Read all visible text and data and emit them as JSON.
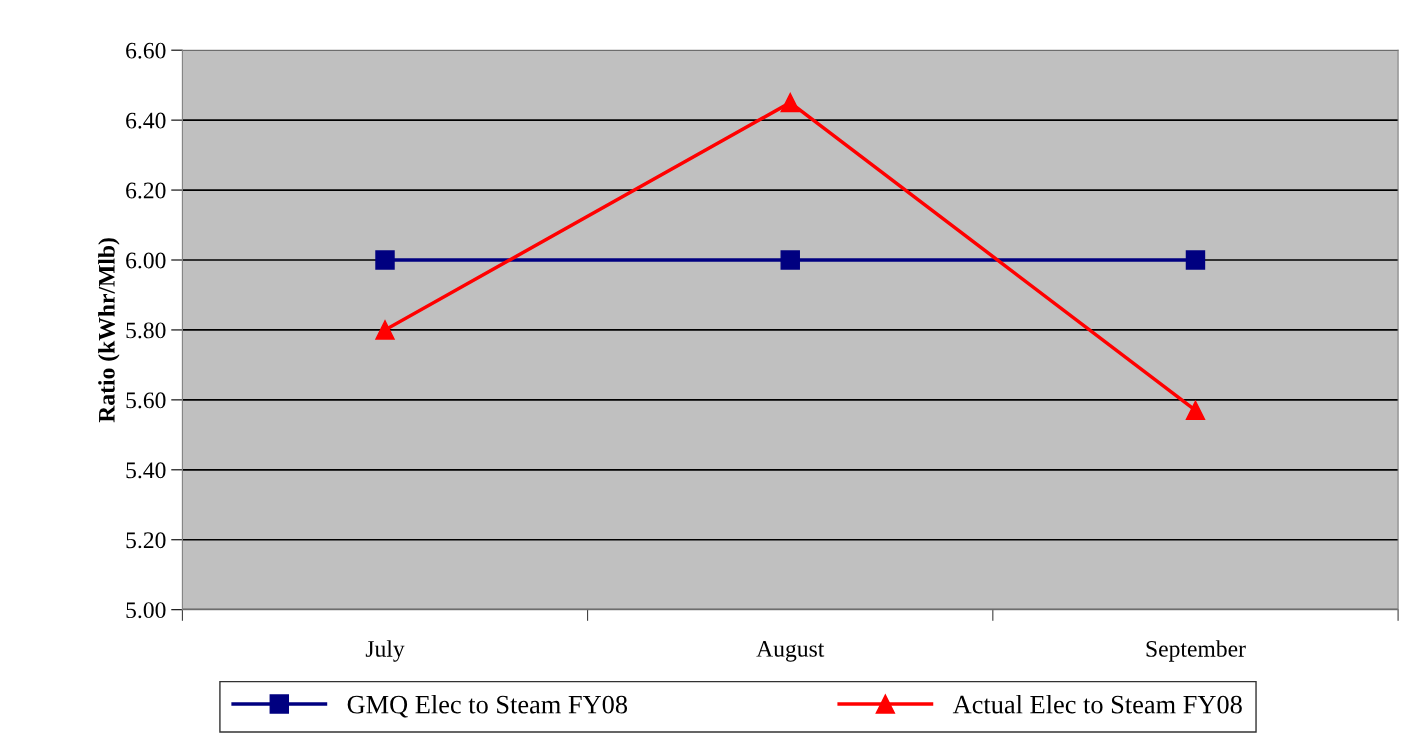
{
  "chart_data": {
    "type": "line",
    "ylabel": "Ratio (kWhr/Mlb)",
    "categories": [
      "July",
      "August",
      "September"
    ],
    "series": [
      {
        "name": "GMQ Elec to Steam FY08",
        "color": "#000080",
        "values": [
          6.0,
          6.0,
          6.0
        ],
        "marker": "square"
      },
      {
        "name": "Actual Elec to Steam FY08",
        "color": "#ff0000",
        "values": [
          5.8,
          6.45,
          5.57
        ],
        "marker": "triangle"
      }
    ],
    "ylim": [
      5.0,
      6.6
    ],
    "yticks": [
      {
        "value": 5.0,
        "label": "5.00"
      },
      {
        "value": 5.2,
        "label": "5.20"
      },
      {
        "value": 5.4,
        "label": "5.40"
      },
      {
        "value": 5.6,
        "label": "5.60"
      },
      {
        "value": 5.8,
        "label": "5.80"
      },
      {
        "value": 6.0,
        "label": "6.00"
      },
      {
        "value": 6.2,
        "label": "6.20"
      },
      {
        "value": 6.4,
        "label": "6.40"
      },
      {
        "value": 6.6,
        "label": "6.60"
      }
    ],
    "grid": "y",
    "legend": "bottom",
    "line_style": "solid"
  }
}
